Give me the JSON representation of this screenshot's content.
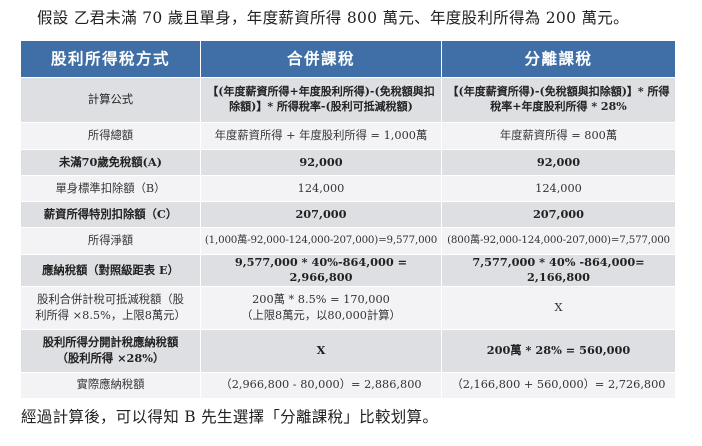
{
  "intro": "假設 乙君未滿 70 歲且單身，年度薪資所得 800 萬元、年度股利所得為 200 萬元。",
  "header": {
    "col1": "股利所得稅方式",
    "col2": "合併課稅",
    "col3": "分離課稅"
  },
  "rows": [
    {
      "label": "計算公式",
      "combined": "【(年度薪資所得+年度股利所得)-(免稅額與扣除額)】* 所得稅率-(股利可抵減稅額)",
      "separate": "【(年度薪資所得)-(免稅額與扣除額)】* 所得稅率+年度股利所得 * 28%"
    },
    {
      "label": "所得總額",
      "combined": "年度薪資所得 + 年度股利所得 = 1,000萬",
      "separate": "年度薪資所得 = 800萬"
    },
    {
      "label": "未滿70歲免稅額(A)",
      "combined": "92,000",
      "separate": "92,000"
    },
    {
      "label": "單身標準扣除額（B）",
      "combined": "124,000",
      "separate": "124,000"
    },
    {
      "label": "薪資所得特別扣除額（C）",
      "combined": "207,000",
      "separate": "207,000"
    },
    {
      "label": "所得淨額",
      "combined": "(1,000萬-92,000-124,000-207,000)=9,577,000",
      "separate": "(800萬-92,000-124,000-207,000)=7,577,000"
    },
    {
      "label": "應納稅額（對照級距表 E）",
      "combined": "9,577,000 * 40%-864,000 = 2,966,800",
      "separate": "7,577,000 * 40% -864,000= 2,166,800"
    },
    {
      "label_line1": "股利合併計稅可抵減稅額（股",
      "label_line2": "利所得 ×8.5%，上限8萬元）",
      "combined_line1": "200萬 * 8.5% = 170,000",
      "combined_line2": "（上限8萬元，以80,000計算）",
      "separate": "X"
    },
    {
      "label_line1": "股利所得分開計稅應納稅額",
      "label_line2": "（股利所得 ×28%）",
      "combined": "X",
      "separate": "200萬 * 28% = 560,000"
    },
    {
      "label": "實際應納稅額",
      "combined": "（2,966,800 - 80,000）= 2,886,800",
      "separate": "（2,166,800 + 560,000）= 2,726,800"
    }
  ],
  "conclusion": "經過計算後，可以得知 B 先生選擇「分離課稅」比較划算。",
  "colors": {
    "header_bg": "#3f6fa6",
    "row_dark": "#dedfe3",
    "row_light": "#f3f3f5"
  }
}
